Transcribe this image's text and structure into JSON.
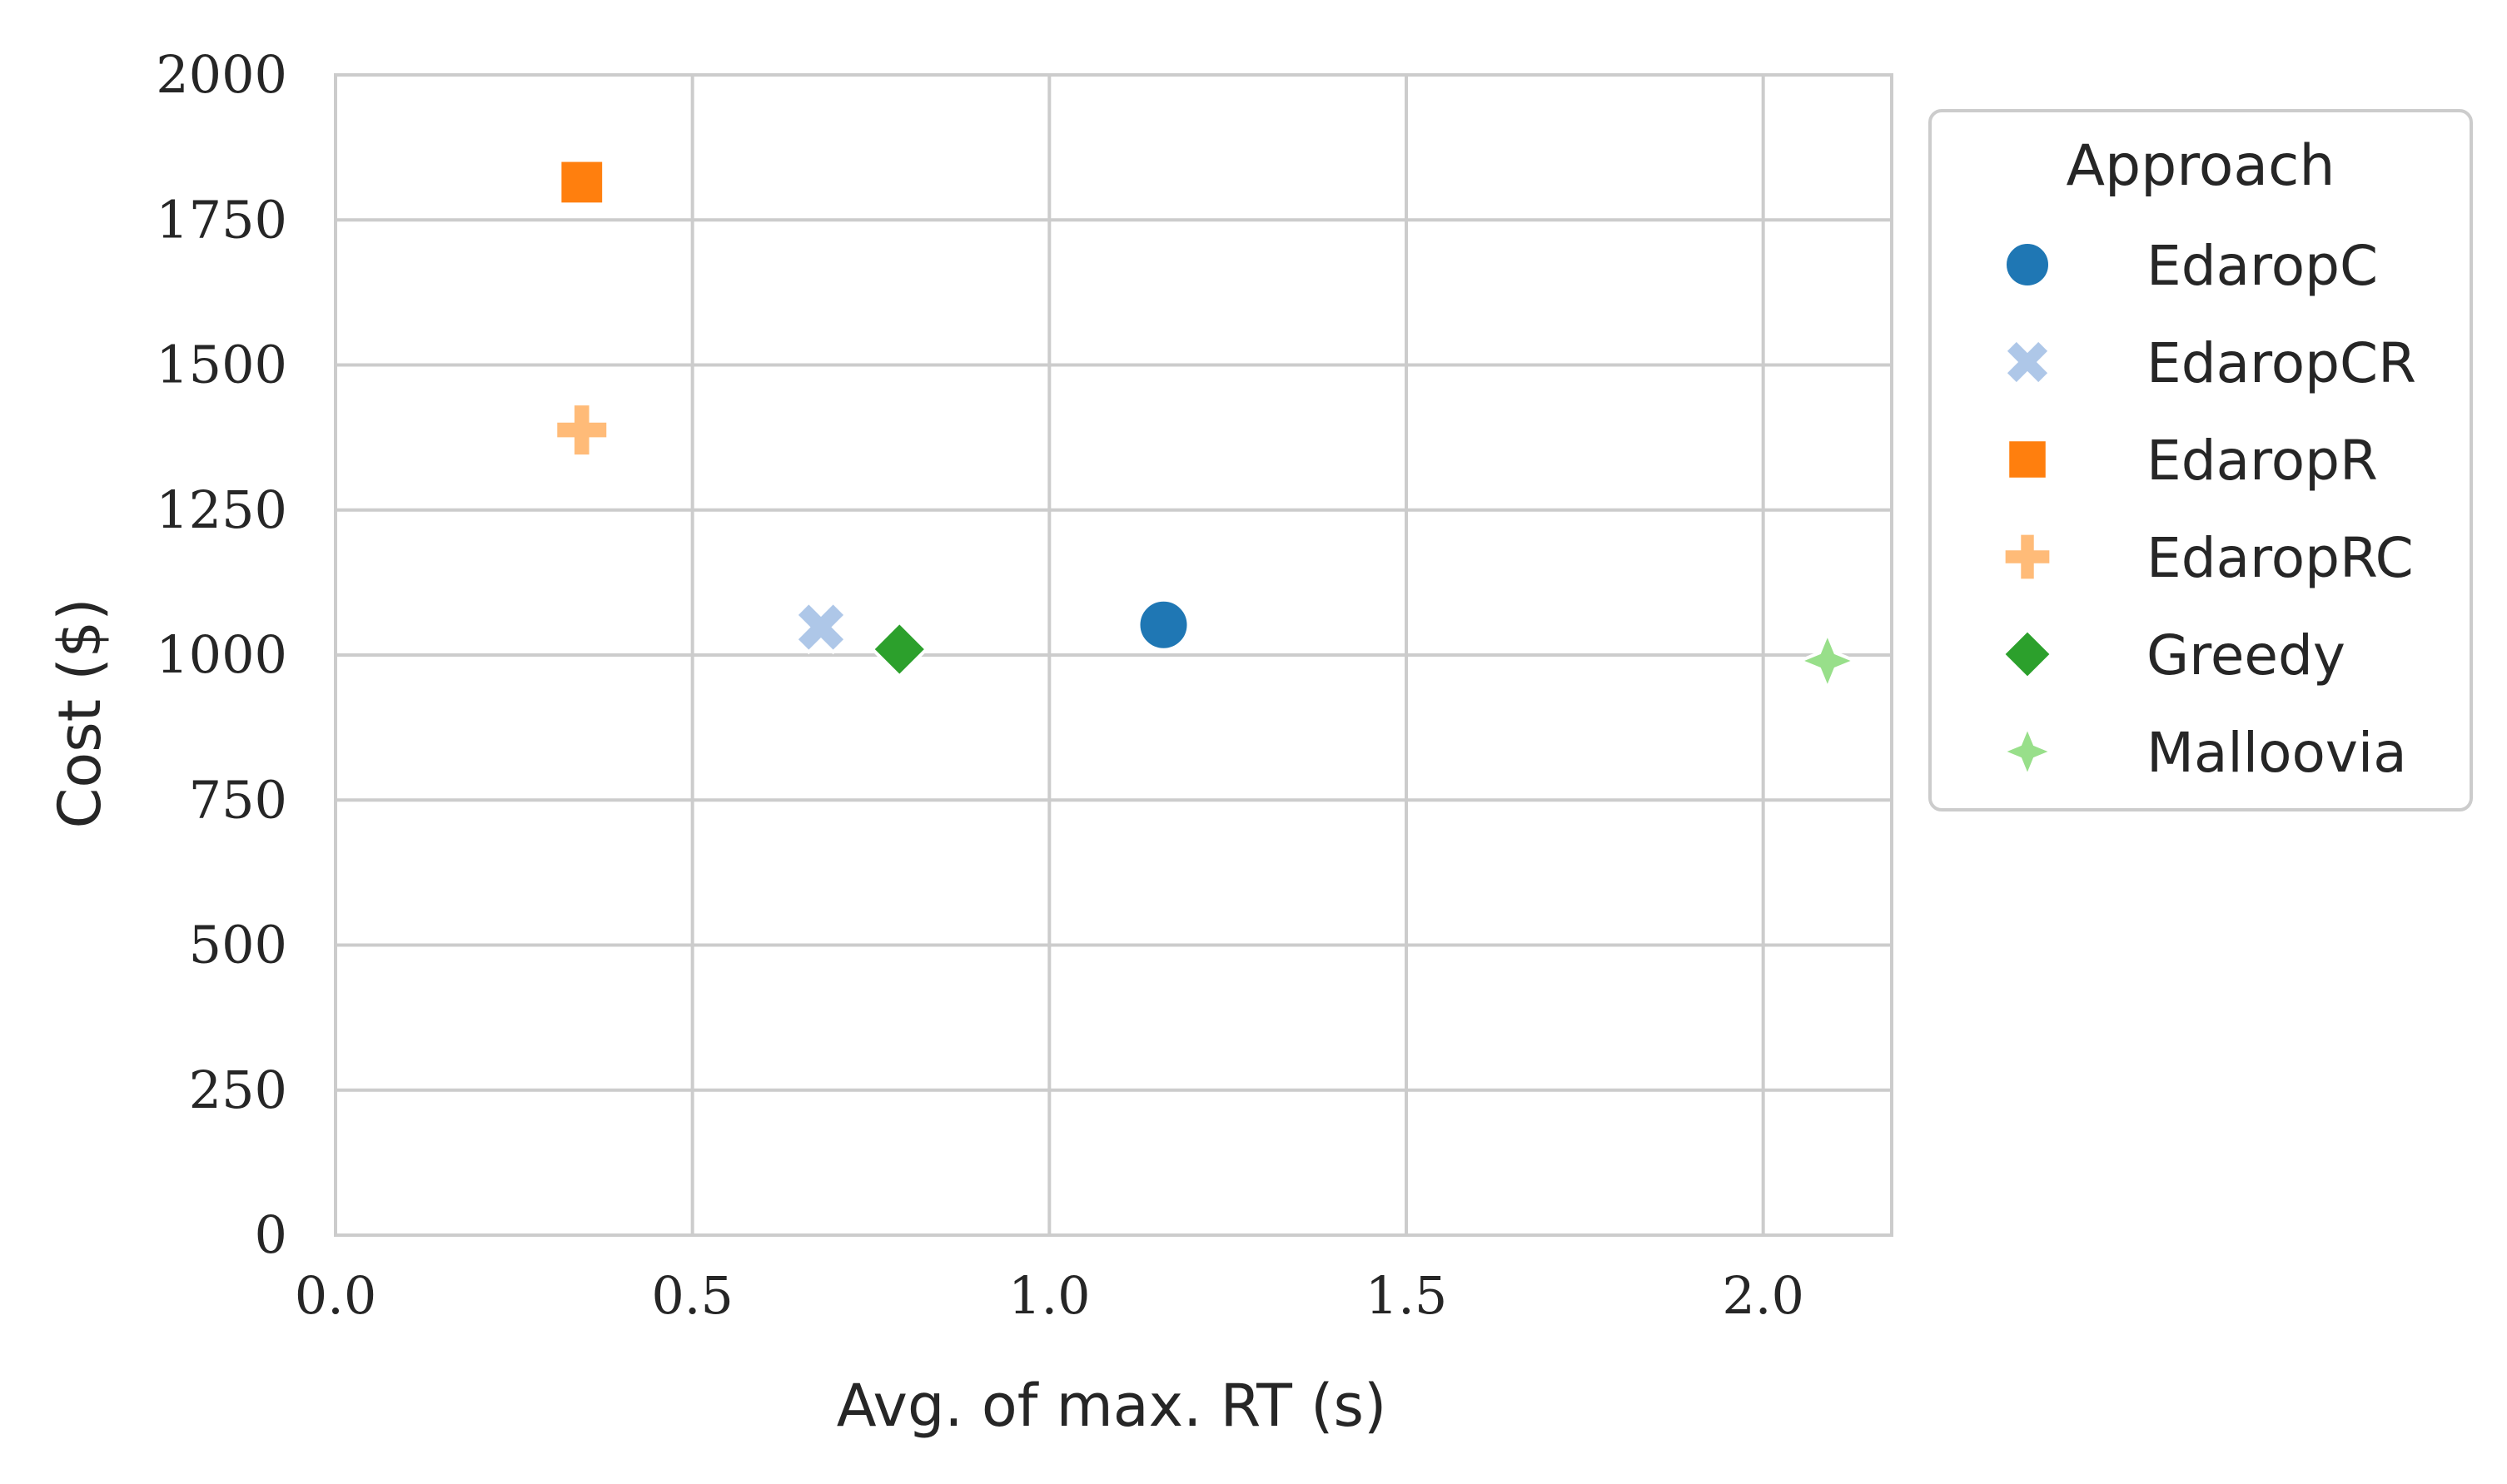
{
  "chart_data": {
    "type": "scatter",
    "xlabel": "Avg. of max. RT (s)",
    "ylabel": "Cost ($)",
    "xlim": [
      0,
      2.18
    ],
    "ylim": [
      0,
      2000
    ],
    "x_ticks": [
      0.0,
      0.5,
      1.0,
      1.5,
      2.0
    ],
    "x_tick_labels": [
      "0.0",
      "0.5",
      "1.0",
      "1.5",
      "2.0"
    ],
    "y_ticks": [
      0,
      250,
      500,
      750,
      1000,
      1250,
      1500,
      1750,
      2000
    ],
    "y_tick_labels": [
      "0",
      "250",
      "500",
      "750",
      "1000",
      "1250",
      "1500",
      "1750",
      "2000"
    ],
    "grid": true,
    "legend_title": "Approach",
    "legend_position": "outside-right-top",
    "series": [
      {
        "name": "EdaropC",
        "x": 1.16,
        "y": 1052,
        "marker": "circle",
        "color": "#1f77b4"
      },
      {
        "name": "EdaropCR",
        "x": 0.68,
        "y": 1048,
        "marker": "x",
        "color": "#aec7e8"
      },
      {
        "name": "EdaropR",
        "x": 0.345,
        "y": 1815,
        "marker": "square",
        "color": "#ff7f0e"
      },
      {
        "name": "EdaropRC",
        "x": 0.345,
        "y": 1388,
        "marker": "plus",
        "color": "#ffbb78"
      },
      {
        "name": "Greedy",
        "x": 0.79,
        "y": 1010,
        "marker": "diamond",
        "color": "#2ca02c"
      },
      {
        "name": "Malloovia",
        "x": 2.09,
        "y": 990,
        "marker": "star4",
        "color": "#98df8a"
      }
    ]
  }
}
